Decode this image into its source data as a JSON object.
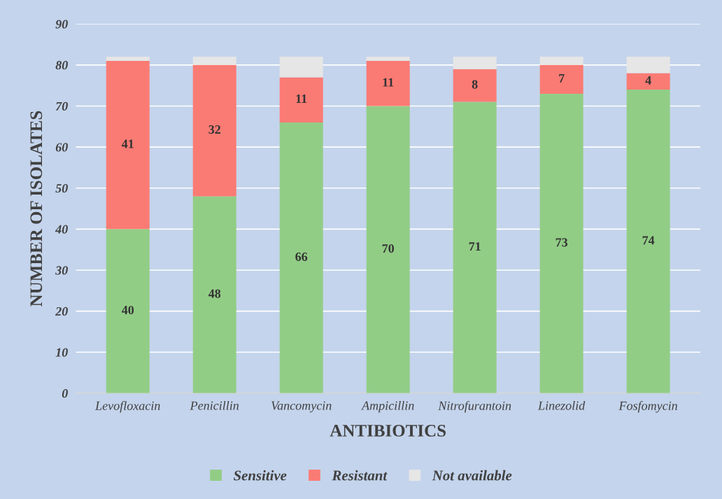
{
  "chart_data": {
    "type": "bar",
    "stacked": true,
    "xlabel": "ANTIBIOTICS",
    "ylabel": "NUMBER OF ISOLATES",
    "categories": [
      "Levofloxacin",
      "Penicillin",
      "Vancomycin",
      "Ampicillin",
      "Nitrofurantoin",
      "Linezolid",
      "Fosfomycin"
    ],
    "series": [
      {
        "name": "Sensitive",
        "color": "#92cd86",
        "values": [
          40,
          48,
          66,
          70,
          71,
          73,
          74
        ],
        "value_labels": [
          "40",
          "48",
          "66",
          "70",
          "71",
          "73",
          "74"
        ]
      },
      {
        "name": "Resistant",
        "color": "#fa7b74",
        "values": [
          41,
          32,
          11,
          11,
          8,
          7,
          4
        ],
        "value_labels": [
          "41",
          "32",
          "11",
          "11",
          "8",
          "7",
          "4"
        ]
      },
      {
        "name": "Not available",
        "color": "#e6e6e6",
        "values": [
          1,
          2,
          5,
          1,
          3,
          2,
          4
        ],
        "value_labels": [
          null,
          null,
          null,
          null,
          null,
          null,
          null
        ]
      }
    ],
    "ylim": [
      0,
      90
    ],
    "yticks": [
      0,
      10,
      20,
      30,
      40,
      50,
      60,
      70,
      80,
      90
    ],
    "grid": "y",
    "legend": "bottom"
  }
}
